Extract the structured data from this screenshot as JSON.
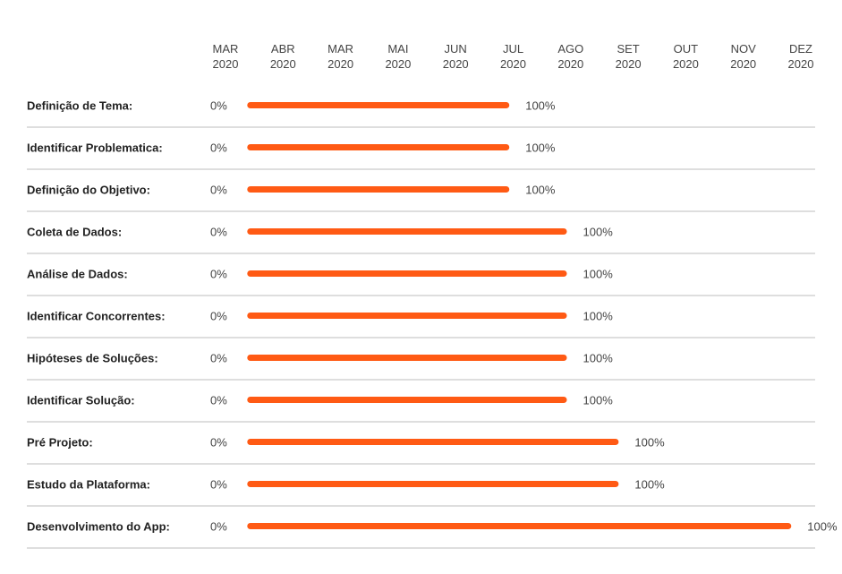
{
  "chart_data": {
    "type": "gantt",
    "bar_color": "#ff5a14",
    "months": [
      {
        "label": "MAR",
        "year": "2020"
      },
      {
        "label": "ABR",
        "year": "2020"
      },
      {
        "label": "MAR",
        "year": "2020"
      },
      {
        "label": "MAI",
        "year": "2020"
      },
      {
        "label": "JUN",
        "year": "2020"
      },
      {
        "label": "JUL",
        "year": "2020"
      },
      {
        "label": "AGO",
        "year": "2020"
      },
      {
        "label": "SET",
        "year": "2020"
      },
      {
        "label": "OUT",
        "year": "2020"
      },
      {
        "label": "NOV",
        "year": "2020"
      },
      {
        "label": "DEZ",
        "year": "2020"
      }
    ],
    "tasks": [
      {
        "name": "Definição de Tema:",
        "start_month": 1,
        "end_month": 5.4,
        "start_label": "0%",
        "end_label": "100%"
      },
      {
        "name": "Identificar Problematica:",
        "start_month": 1,
        "end_month": 5.4,
        "start_label": "0%",
        "end_label": "100%"
      },
      {
        "name": "Definição do Objetivo:",
        "start_month": 1,
        "end_month": 5.4,
        "start_label": "0%",
        "end_label": "100%"
      },
      {
        "name": "Coleta de Dados:",
        "start_month": 1,
        "end_month": 6.4,
        "start_label": "0%",
        "end_label": "100%"
      },
      {
        "name": "Análise de Dados:",
        "start_month": 1,
        "end_month": 6.4,
        "start_label": "0%",
        "end_label": "100%"
      },
      {
        "name": "Identificar Concorrentes:",
        "start_month": 1,
        "end_month": 6.4,
        "start_label": "0%",
        "end_label": "100%"
      },
      {
        "name": "Hipóteses de Soluções:",
        "start_month": 1,
        "end_month": 6.4,
        "start_label": "0%",
        "end_label": "100%"
      },
      {
        "name": "Identificar Solução:",
        "start_month": 1,
        "end_month": 6.4,
        "start_label": "0%",
        "end_label": "100%"
      },
      {
        "name": "Pré Projeto:",
        "start_month": 1,
        "end_month": 7.3,
        "start_label": "0%",
        "end_label": "100%"
      },
      {
        "name": "Estudo da Plataforma:",
        "start_month": 1,
        "end_month": 7.3,
        "start_label": "0%",
        "end_label": "100%"
      },
      {
        "name": "Desenvolvimento do App:",
        "start_month": 1,
        "end_month": 10.3,
        "start_label": "0%",
        "end_label": "100%"
      }
    ]
  }
}
